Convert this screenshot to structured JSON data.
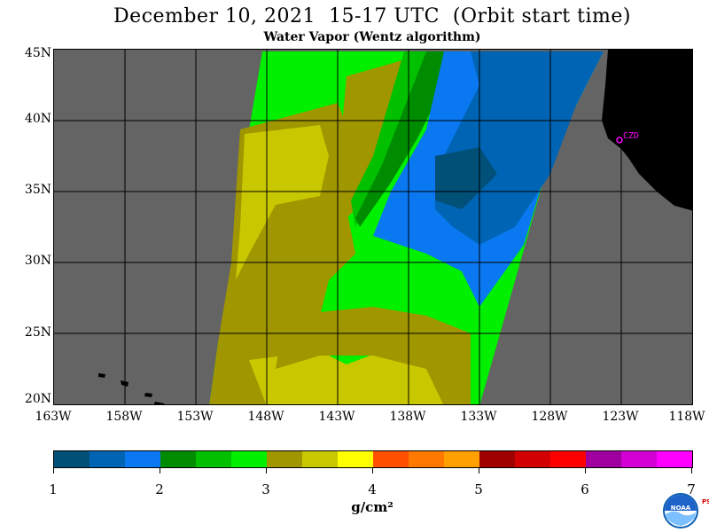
{
  "header": {
    "title": "December 10, 2021  15-17 UTC  (Orbit start time)",
    "subtitle": "Water Vapor (Wentz algorithm)"
  },
  "map": {
    "lat_labels": [
      "45N",
      "40N",
      "35N",
      "30N",
      "25N",
      "20N"
    ],
    "lon_labels": [
      "163W",
      "158W",
      "153W",
      "148W",
      "143W",
      "138W",
      "133W",
      "128W",
      "123W",
      "118W"
    ],
    "station_label": "CZD",
    "colors": {
      "no_data": "#646464",
      "land": "#000000",
      "grid": "#000000",
      "station": "#ff00ff"
    }
  },
  "colorbar": {
    "labels": [
      "1",
      "2",
      "3",
      "4",
      "5",
      "6",
      "7"
    ],
    "units": "g/cm²",
    "colors": [
      "#005078",
      "#0064b4",
      "#0a78f0",
      "#008c00",
      "#00c000",
      "#00f000",
      "#a09600",
      "#c8c800",
      "#ffff00",
      "#ff5000",
      "#ff7800",
      "#ffa000",
      "#a00000",
      "#d20000",
      "#ff0000",
      "#a000a0",
      "#d200d2",
      "#ff00ff"
    ]
  },
  "logo": {
    "name": "noaa-logo",
    "text": "NOAA",
    "side_text": "PSL"
  }
}
